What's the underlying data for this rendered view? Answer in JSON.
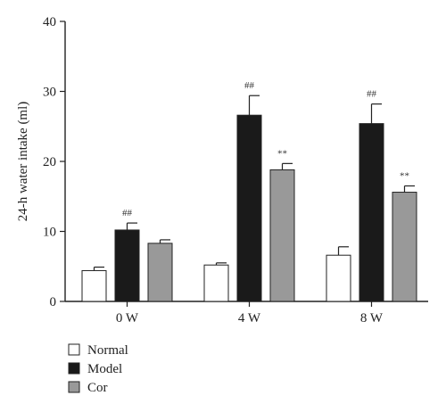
{
  "chart_data": {
    "type": "bar",
    "title": "",
    "xlabel": "",
    "ylabel": "24-h water intake (ml)",
    "ylim": [
      0,
      40
    ],
    "yticks": [
      0,
      10,
      20,
      30,
      40
    ],
    "grid": false,
    "legend_position": "bottom-left",
    "categories": [
      "0 W",
      "4 W",
      "8 W"
    ],
    "series": [
      {
        "name": "Normal",
        "color": "#ffffff",
        "values": [
          4.4,
          5.2,
          6.6
        ],
        "errors": [
          0.5,
          0.3,
          1.2
        ],
        "annotations": [
          "",
          "",
          ""
        ]
      },
      {
        "name": "Model",
        "color": "#1a1a1a",
        "values": [
          10.2,
          26.6,
          25.4
        ],
        "errors": [
          1.0,
          2.8,
          2.8
        ],
        "annotations": [
          "##",
          "##",
          "##"
        ]
      },
      {
        "name": "Cor",
        "color": "#999999",
        "values": [
          8.3,
          18.8,
          15.6
        ],
        "errors": [
          0.5,
          0.9,
          0.9
        ],
        "annotations": [
          "",
          "**",
          "**"
        ]
      }
    ]
  }
}
